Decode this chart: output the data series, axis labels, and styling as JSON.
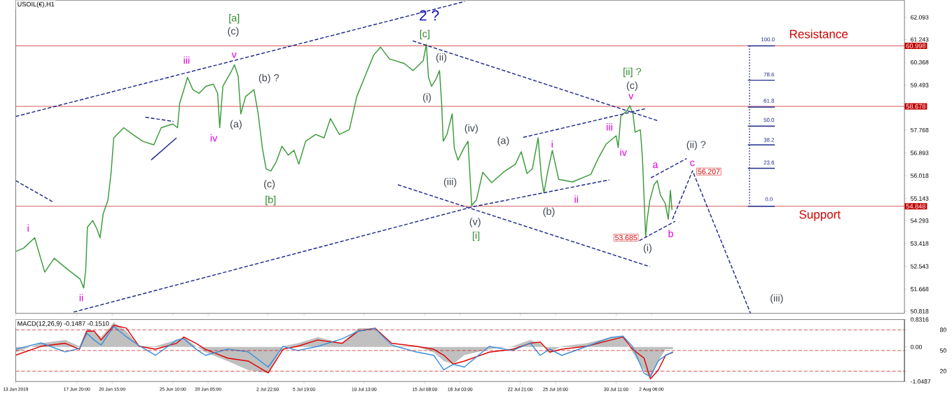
{
  "chart_data": [
    {
      "type": "line",
      "title": "USOIL(€),H1",
      "xlim": [
        "2019-06-13T00:00",
        "2019-08-22T06:00"
      ],
      "ylim": [
        50.74,
        62.75
      ],
      "tick_labels": "y",
      "xticks": [
        {
          "value": "2019-06-13T00:00",
          "label": null
        },
        {
          "value": "2019-06-17T20:00",
          "label": null
        },
        {
          "value": "2019-06-20T15:00",
          "label": null
        },
        {
          "value": "2019-06-25T10:00",
          "label": null
        },
        {
          "value": "2019-06-28T05:00",
          "label": null
        },
        {
          "value": "2019-07-02T22:00",
          "label": null
        },
        {
          "value": "2019-07-05T19:00",
          "label": null
        },
        {
          "value": "2019-07-10T13:00",
          "label": null
        },
        {
          "value": "2019-07-15T08:00",
          "label": null
        },
        {
          "value": "2019-07-18T03:00",
          "label": null
        },
        {
          "value": "2019-07-22T21:00",
          "label": null
        },
        {
          "value": "2019-07-25T16:00",
          "label": null
        },
        {
          "value": "2019-07-30T11:00",
          "label": null
        },
        {
          "value": "2019-08-02T06:00",
          "label": null
        }
      ],
      "yticks": [
        62.093,
        61.243,
        60.368,
        59.493,
        57.768,
        56.893,
        56.018,
        55.143,
        54.293,
        53.418,
        52.543,
        51.668,
        50.818
      ],
      "series": [
        {
          "color": "#3a9a3a",
          "x": [
            "2019-06-13T00:00",
            "2019-06-13T15:00",
            "2019-06-14T12:00",
            "2019-06-15T07:00",
            "2019-06-16T01:00",
            "2019-06-17T04:00",
            "2019-06-18T02:00",
            "2019-06-18T09:00",
            "2019-06-18T13:00",
            "2019-06-18T16:00",
            "2019-06-19T02:00",
            "2019-06-19T10:00",
            "2019-06-19T16:00",
            "2019-06-19T22:00",
            "2019-06-20T07:00",
            "2019-06-20T13:00",
            "2019-06-20T18:00",
            "2019-06-21T13:00",
            "2019-06-22T06:00",
            "2019-06-23T01:00",
            "2019-06-23T22:00",
            "2019-06-24T12:00",
            "2019-06-25T10:00",
            "2019-06-25T19:00",
            "2019-06-25T23:00",
            "2019-06-26T07:00",
            "2019-06-26T14:00",
            "2019-06-27T00:00",
            "2019-06-27T12:00",
            "2019-06-28T01:00",
            "2019-06-28T15:00",
            "2019-06-28T23:00",
            "2019-06-29T03:00",
            "2019-06-29T09:00",
            "2019-06-30T00:00",
            "2019-06-30T07:00",
            "2019-06-30T14:00",
            "2019-06-30T19:00",
            "2019-07-01T04:00",
            "2019-07-01T20:00",
            "2019-07-02T04:00",
            "2019-07-02T12:00",
            "2019-07-02T19:00",
            "2019-07-03T04:00",
            "2019-07-03T14:00",
            "2019-07-04T01:00",
            "2019-07-04T13:00",
            "2019-07-05T00:00",
            "2019-07-05T09:00",
            "2019-07-05T22:00",
            "2019-07-06T17:00",
            "2019-07-07T09:00",
            "2019-07-07T21:00",
            "2019-07-08T14:00",
            "2019-07-09T09:00",
            "2019-07-09T23:00",
            "2019-07-10T16:00",
            "2019-07-11T07:00",
            "2019-07-11T20:00",
            "2019-07-12T13:00",
            "2019-07-13T17:00",
            "2019-07-14T10:00",
            "2019-07-15T05:00",
            "2019-07-15T11:00",
            "2019-07-15T15:00",
            "2019-07-15T21:00",
            "2019-07-16T05:00",
            "2019-07-16T12:00",
            "2019-07-16T16:00",
            "2019-07-16T19:00",
            "2019-07-17T02:00",
            "2019-07-17T12:00",
            "2019-07-17T16:00",
            "2019-07-17T23:00",
            "2019-07-18T10:00",
            "2019-07-18T18:00",
            "2019-07-19T01:00",
            "2019-07-19T10:00",
            "2019-07-19T22:00",
            "2019-07-20T15:00",
            "2019-07-21T13:00",
            "2019-07-22T12:00",
            "2019-07-22T23:00",
            "2019-07-23T10:00",
            "2019-07-23T20:00",
            "2019-07-24T07:00",
            "2019-07-24T13:00",
            "2019-07-24T18:00",
            "2019-07-25T01:00",
            "2019-07-25T10:00",
            "2019-07-25T22:00",
            "2019-07-27T00:00",
            "2019-07-28T11:00",
            "2019-07-29T01:00",
            "2019-07-29T16:00",
            "2019-07-30T11:00",
            "2019-07-30T15:00",
            "2019-07-30T20:00",
            "2019-07-31T07:00",
            "2019-07-31T13:00",
            "2019-07-31T19:00",
            "2019-07-31T23:00",
            "2019-08-01T09:00",
            "2019-08-01T13:00",
            "2019-08-01T19:00",
            "2019-08-01T22:00",
            "2019-08-02T03:00",
            "2019-08-02T11:00",
            "2019-08-02T17:00",
            "2019-08-02T23:00",
            "2019-08-03T08:00",
            "2019-08-03T14:00",
            "2019-08-03T18:00",
            "2019-08-03T21:00"
          ],
          "values": [
            53.11,
            53.24,
            53.64,
            52.32,
            52.85,
            52.4,
            52.06,
            51.71,
            52.45,
            54.04,
            54.3,
            53.98,
            53.64,
            54.56,
            55.09,
            56.15,
            57.47,
            57.86,
            57.6,
            57.34,
            57.2,
            57.86,
            58.0,
            57.86,
            58.79,
            59.32,
            59.79,
            59.32,
            59.18,
            59.45,
            59.53,
            59.18,
            57.86,
            59.45,
            59.98,
            60.27,
            59.84,
            58.39,
            59.05,
            59.32,
            58.39,
            57.07,
            56.28,
            56.2,
            56.54,
            57.15,
            56.81,
            56.99,
            56.46,
            57.34,
            57.6,
            57.47,
            58.21,
            57.6,
            57.79,
            59.05,
            59.9,
            60.64,
            60.95,
            60.5,
            60.32,
            60.05,
            60.43,
            61.06,
            59.79,
            59.45,
            59.71,
            60.05,
            58.79,
            57.34,
            57.6,
            58.39,
            57.07,
            56.62,
            57.07,
            57.34,
            54.88,
            55.09,
            56.15,
            55.75,
            56.15,
            56.46,
            56.94,
            56.1,
            56.28,
            57.47,
            56.02,
            55.36,
            56.15,
            56.99,
            55.88,
            55.78,
            56.07,
            56.68,
            57.23,
            57.55,
            57.1,
            58.31,
            58.5,
            58.71,
            58.39,
            57.69,
            57.78,
            56.68,
            53.685,
            54.35,
            55.07,
            55.67,
            55.83,
            55.28,
            54.96,
            54.35,
            55.46,
            54.7
          ]
        },
        {
          "color": "#1f2a8a",
          "line_style": "dashed",
          "x": [
            "2019-06-13T00:00",
            "2019-07-18T12:00"
          ],
          "values": [
            58.29,
            62.7
          ]
        },
        {
          "color": "#1f2a8a",
          "line_style": "dashed",
          "x": [
            "2019-06-17T14:00",
            "2019-07-19T04:00",
            "2019-07-29T22:00"
          ],
          "values": [
            50.79,
            54.83,
            55.86
          ]
        },
        {
          "color": "#1f2a8a",
          "line_style": "dashed",
          "x": [
            "2019-07-23T03:00",
            "2019-08-01T21:00"
          ],
          "values": [
            57.49,
            58.6
          ]
        },
        {
          "color": "#1f2a8a",
          "line_style": "dashed",
          "x": [
            "2019-07-14T09:00",
            "2019-08-02T19:00"
          ],
          "values": [
            61.19,
            58.12
          ]
        },
        {
          "color": "#1f2a8a",
          "line_style": "dashed",
          "x": [
            "2019-07-13T05:00",
            "2019-08-02T03:00"
          ],
          "values": [
            55.67,
            52.53
          ]
        },
        {
          "color": "#1f2a8a",
          "line_style": "dashed",
          "x": [
            "2019-06-13T00:00",
            "2019-06-15T23:00"
          ],
          "values": [
            55.83,
            55.01
          ]
        },
        {
          "color": "#1f2a8a",
          "line_style": "dashed",
          "x": [
            "2019-06-23T06:00",
            "2019-06-25T11:00"
          ],
          "values": [
            58.26,
            58.1
          ]
        },
        {
          "color": "#1f2a8a",
          "line_style": "solid",
          "x": [
            "2019-06-23T17:00",
            "2019-06-25T17:00"
          ],
          "values": [
            56.62,
            57.47
          ]
        },
        {
          "color": "#1f2a8a",
          "line_style": "dashed",
          "x": [
            "2019-08-02T05:00",
            "2019-08-05T01:00"
          ],
          "values": [
            55.94,
            56.68
          ]
        },
        {
          "color": "#1f2a8a",
          "line_style": "dashed",
          "x": [
            "2019-08-01T07:00",
            "2019-08-04T03:00"
          ],
          "values": [
            53.53,
            54.27
          ]
        },
        {
          "color": "#1f2a8a",
          "line_style": "dashed",
          "x": [
            "2019-08-03T22:00",
            "2019-08-05T12:00",
            "2019-08-10T02:00"
          ],
          "values": [
            54.35,
            56.207,
            50.74
          ]
        },
        {
          "color": "#1f2a8a",
          "line_style": "dotted",
          "x": [
            "2019-08-10T00:00",
            "2019-08-10T00:00"
          ],
          "values": [
            60.998,
            54.848
          ]
        },
        {
          "color": "#1f2a8a",
          "line_style": "solid",
          "x": [
            "2019-08-09T21:00",
            "2019-08-12T00:00"
          ],
          "values": [
            60.998,
            60.998
          ]
        },
        {
          "color": "#1f2a8a",
          "line_style": "solid",
          "x": [
            "2019-08-09T21:00",
            "2019-08-12T00:00"
          ],
          "values": [
            59.68,
            59.68
          ]
        },
        {
          "color": "#1f2a8a",
          "line_style": "solid",
          "x": [
            "2019-08-09T21:00",
            "2019-08-12T00:00"
          ],
          "values": [
            58.65,
            58.65
          ]
        },
        {
          "color": "#1f2a8a",
          "line_style": "solid",
          "x": [
            "2019-08-09T21:00",
            "2019-08-12T00:00"
          ],
          "values": [
            57.92,
            57.92
          ]
        },
        {
          "color": "#1f2a8a",
          "line_style": "solid",
          "x": [
            "2019-08-09T21:00",
            "2019-08-12T00:00"
          ],
          "values": [
            57.2,
            57.2
          ]
        },
        {
          "color": "#1f2a8a",
          "line_style": "solid",
          "x": [
            "2019-08-09T21:00",
            "2019-08-12T00:00"
          ],
          "values": [
            56.3,
            56.3
          ]
        },
        {
          "color": "#1f2a8a",
          "line_style": "solid",
          "x": [
            "2019-08-09T21:00",
            "2019-08-12T00:00"
          ],
          "values": [
            54.848,
            54.848
          ]
        }
      ],
      "ref_lines": [
        {
          "axis": "y",
          "value": 60.998,
          "label": "60.998",
          "color": "#c00000"
        },
        {
          "axis": "y",
          "value": 58.678,
          "label": "58.678",
          "color": "#c00000"
        },
        {
          "axis": "y",
          "value": 54.848,
          "label": "54.848",
          "color": "#c00000"
        }
      ],
      "annotations": [
        "[a]",
        "(c)",
        "2 ?",
        "[c]",
        "iii",
        "v",
        "(b) ?",
        "(ii)",
        "(i)",
        "iv",
        "(a)",
        "(iv)",
        "(a)",
        "(iii)",
        "(c)",
        "[b]",
        "(v)",
        "[i]",
        "i",
        "ii",
        "[ii] ?",
        "(c)",
        "v",
        "iii",
        "i",
        "iv",
        "ii",
        "(b)",
        "a",
        "(ii) ?",
        "c",
        "56.207",
        "53.685",
        "(i)",
        "b",
        "(iii)",
        "Resistance",
        "Support",
        "100.0",
        "78.6",
        "61.8",
        "50.0",
        "38.2",
        "23.6",
        "0.0"
      ]
    },
    {
      "type": "line",
      "title": "MACD(12,26,9) -0.1487 -0.1510",
      "xlim": [
        "2019-06-13T00:00",
        "2019-08-22T06:00"
      ],
      "ylim": [
        -1.0487,
        0.8316
      ],
      "y2lim": [
        5,
        95
      ],
      "xticks": [
        {
          "value": "2019-06-13T00:00",
          "label": "13 Jun 2019"
        },
        {
          "value": "2019-06-17T20:00",
          "label": "17 Jun 20:00"
        },
        {
          "value": "2019-06-20T15:00",
          "label": "20 Jun 15:00"
        },
        {
          "value": "2019-06-25T10:00",
          "label": "25 Jun 10:00"
        },
        {
          "value": "2019-06-28T05:00",
          "label": "28 Jun 05:00"
        },
        {
          "value": "2019-07-02T22:00",
          "label": "2 Jul 22:00"
        },
        {
          "value": "2019-07-05T19:00",
          "label": "5 Jul 19:00"
        },
        {
          "value": "2019-07-10T13:00",
          "label": "10 Jul 13:00"
        },
        {
          "value": "2019-07-15T08:00",
          "label": "15 Jul 08:00"
        },
        {
          "value": "2019-07-18T03:00",
          "label": "18 Jul 03:00"
        },
        {
          "value": "2019-07-22T21:00",
          "label": "22 Jul 21:00"
        },
        {
          "value": "2019-07-25T16:00",
          "label": "25 Jul 16:00"
        },
        {
          "value": "2019-07-30T11:00",
          "label": "30 Jul 11:00"
        },
        {
          "value": "2019-08-02T06:00",
          "label": "2 Aug 06:00"
        }
      ],
      "yticks": [
        0.8316,
        {
          "value": 0,
          "label": "0.00"
        },
        -1.0487
      ],
      "y2ticks": [
        20,
        50,
        80
      ],
      "x": [
        "2019-06-13T00:00",
        "2019-06-15T00:00",
        "2019-06-16T22:00",
        "2019-06-18T01:00",
        "2019-06-18T15:00",
        "2019-06-19T05:00",
        "2019-06-19T18:00",
        "2019-06-20T18:00",
        "2019-06-21T18:00",
        "2019-06-22T18:00",
        "2019-06-24T01:00",
        "2019-06-25T17:00",
        "2019-06-26T07:00",
        "2019-06-27T06:00",
        "2019-06-28T00:00",
        "2019-06-29T18:00",
        "2019-07-01T09:00",
        "2019-07-02T23:00",
        "2019-07-04T03:00",
        "2019-07-05T07:00",
        "2019-07-06T21:00",
        "2019-07-08T19:00",
        "2019-07-10T02:00",
        "2019-07-11T10:00",
        "2019-07-12T17:00",
        "2019-07-14T15:00",
        "2019-07-16T01:00",
        "2019-07-16T20:00",
        "2019-07-17T14:00",
        "2019-07-18T11:00",
        "2019-07-20T10:00",
        "2019-07-22T07:00",
        "2019-07-23T16:00",
        "2019-07-24T11:00",
        "2019-07-25T05:00",
        "2019-07-26T04:00",
        "2019-07-28T03:00",
        "2019-07-30T01:00",
        "2019-07-31T00:00",
        "2019-07-31T18:00",
        "2019-08-01T16:00",
        "2019-08-02T04:00",
        "2019-08-02T19:00",
        "2019-08-03T09:00",
        "2019-08-03T23:00"
      ],
      "series": [
        {
          "type": "area",
          "color": "#c0c0c0",
          "values": [
            -0.16,
            0.11,
            0.21,
            0.02,
            0.57,
            0.48,
            0.3,
            0.75,
            0.48,
            0.02,
            0.02,
            0.21,
            0.3,
            0.02,
            -0.16,
            -0.43,
            -0.7,
            -0.79,
            0.02,
            0.11,
            0.3,
            0.11,
            0.57,
            0.57,
            0.02,
            0.02,
            -0.16,
            -0.43,
            -0.52,
            -0.25,
            -0.07,
            0.02,
            0.21,
            0.11,
            -0.16,
            0.02,
            0.11,
            0.3,
            0.3,
            -0.16,
            -0.7,
            -0.97,
            -0.43,
            -0.07,
            -0.07
          ]
        },
        {
          "color": "#e00000",
          "values": [
            -0.25,
            0.02,
            0.11,
            -0.07,
            0.48,
            0.48,
            0.21,
            0.66,
            0.57,
            0.02,
            -0.07,
            0.11,
            0.3,
            0.11,
            -0.07,
            -0.34,
            -0.43,
            -0.79,
            -0.07,
            0.02,
            0.21,
            0.11,
            0.48,
            0.57,
            0.11,
            0.02,
            -0.07,
            -0.25,
            -0.52,
            -0.43,
            -0.16,
            -0.07,
            0.11,
            0.15,
            -0.16,
            -0.07,
            0.02,
            0.21,
            0.3,
            -0.07,
            -0.34,
            -0.97,
            -0.7,
            -0.25,
            -0.16
          ]
        },
        {
          "color": "#3a8fd8",
          "axis": "y2",
          "values": [
            52,
            61,
            48,
            53,
            75,
            65,
            58,
            85,
            70,
            57,
            43,
            65,
            67,
            52,
            43,
            52,
            48,
            26,
            56,
            50,
            56,
            67,
            78,
            82,
            58,
            48,
            43,
            22,
            30,
            26,
            56,
            50,
            61,
            43,
            52,
            43,
            56,
            69,
            71,
            56,
            17,
            12,
            35,
            43,
            48
          ]
        }
      ],
      "ref_lines": [
        {
          "axis": "y2",
          "value": 80,
          "color": "#c00000",
          "line_style": "dashed"
        },
        {
          "axis": "y2",
          "value": 50,
          "color": "#c00000",
          "line_style": "dashed"
        },
        {
          "axis": "y2",
          "value": 20,
          "color": "#c00000",
          "line_style": "dashed"
        }
      ]
    }
  ]
}
